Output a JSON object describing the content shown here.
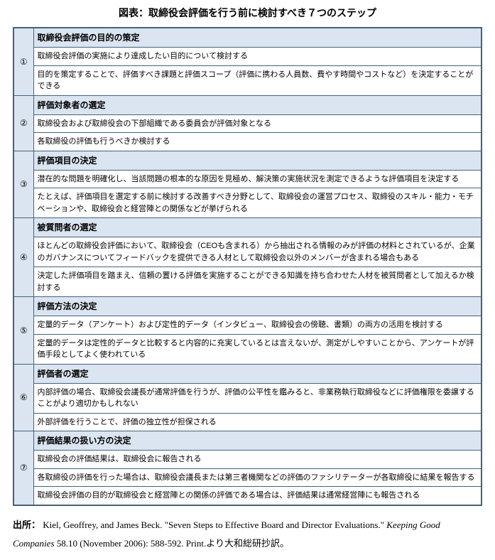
{
  "title": "図表：取締役会評価を行う前に検討すべき７つのステップ",
  "colors": {
    "header_bg": "#dbe5f1",
    "border": "#42647b",
    "background": "#ffffff"
  },
  "steps": [
    {
      "num": "①",
      "header": "取締役会評価の目的の策定",
      "rows": [
        "取締役会評価の実施により達成したい目的について検討する",
        "目的を策定することで、評価すべき課題と評価スコープ（評価に携わる人員数、費やす時間やコストなど）を決定することができる"
      ]
    },
    {
      "num": "②",
      "header": "評価対象者の選定",
      "rows": [
        "取締役会および取締役会の下部組織である委員会が評価対象となる",
        "各取締役の評価も行うべきか検討する"
      ]
    },
    {
      "num": "③",
      "header": "評価項目の決定",
      "rows": [
        "潜在的な問題を明確化し、当該問題の根本的な原因を見極め、解決策の実施状況を測定できるような評価項目を決定する",
        "たとえば、評価項目を選定する前に検討する改善すべき分野として、取締役会の運営プロセス、取締役のスキル・能力・モチベーションや、取締役会と経営陣との関係などが挙げられる"
      ]
    },
    {
      "num": "④",
      "header": "被質問者の選定",
      "rows": [
        "ほとんどの取締役会評価において、取締役会（CEOも含まれる）から抽出される情報のみが評価の材料とされているが、企業のガバナンスについてフィードバックを提供できる人材として取締役会以外のメンバーが含まれる場合もある",
        "決定した評価項目を踏まえ、信頼の置ける評価を実施することができる知識を持ち合わせた人材を被質問者として加えるか検討する"
      ]
    },
    {
      "num": "⑤",
      "header": "評価方法の決定",
      "rows": [
        "定量的データ（アンケート）および定性的データ（インタビュー、取締役会の傍聴、書類）の両方の活用を検討する",
        "定量的データは定性的データと比較すると内容的に充実しているとは言えないが、測定がしやすいことから、アンケートが評価手段としてよく使われている"
      ]
    },
    {
      "num": "⑥",
      "header": "評価者の選定",
      "rows": [
        "内部評価の場合、取締役会議長が通常評価を行うが、評価の公平性を鑑みると、非業務執行取締役などに評価権限を委譲することがより適切かもしれない",
        "外部評価を行うことで、評価の独立性が担保される"
      ]
    },
    {
      "num": "⑦",
      "header": "評価結果の扱い方の決定",
      "rows": [
        "取締役会の評価結果は、取締役会に報告される",
        "各取締役の評価を行った場合は、取締役会議長または第三者機関などの評価のファシリテーターが各取締役に結果を報告する",
        "取締役会評価の目的が取締役会と経営陣との関係の評価である場合は、評価結果は通常経営陣にも報告される"
      ]
    }
  ],
  "source": {
    "label": "出所：",
    "text1": "Kiel, Geoffrey, and James Beck. \"Seven Steps to Effective Board and Director Evaluations.\" ",
    "journal": "Keeping Good Companies",
    "text2": " 58.10 (November 2006): 588-592. Print.より大和総研抄訳。"
  }
}
